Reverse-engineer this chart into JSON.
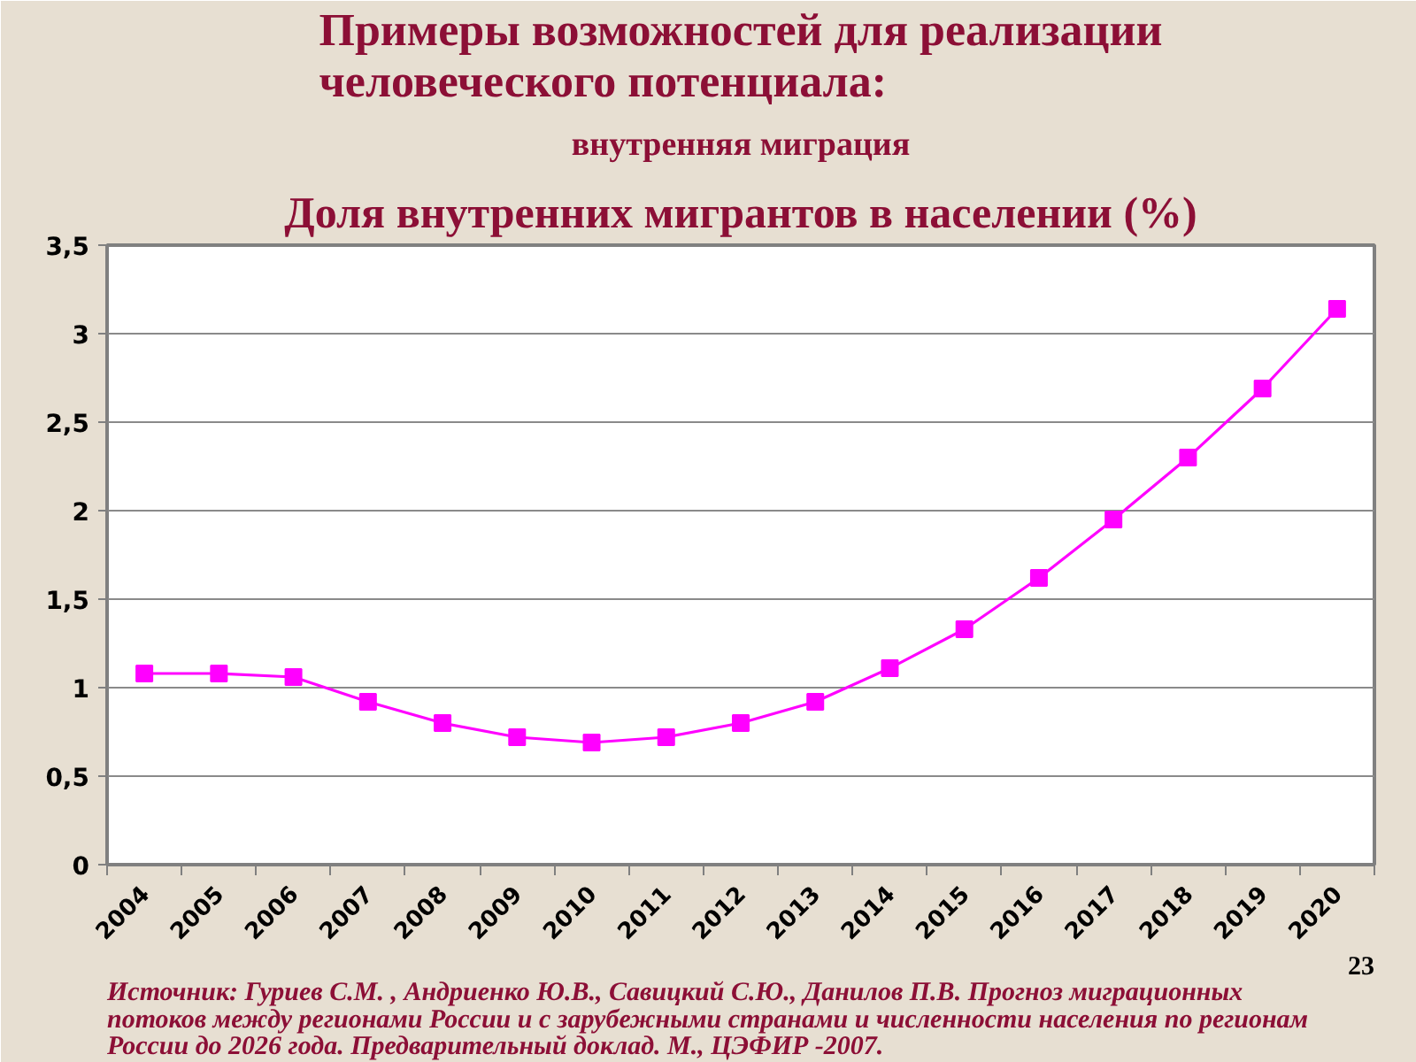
{
  "chart_data": {
    "type": "line",
    "title": "Примеры возможностей для реализации человеческого потенциала:",
    "subtitle": "внутренняя миграция",
    "annotations": [
      "Доля внутренних мигрантов в населении (%)",
      "Источник: Гуриев С.М. , Андриенко Ю.В., Савицкий С.Ю., Данилов П.В. Прогноз миграционных потоков между регионами России и с зарубежными странами и численности населения по регионам России до 2026 года. Предварительный доклад. М., ЦЭФИР -2007.",
      "23"
    ],
    "categories": [
      "2004",
      "2005",
      "2006",
      "2007",
      "2008",
      "2009",
      "2010",
      "2011",
      "2012",
      "2013",
      "2014",
      "2015",
      "2016",
      "2017",
      "2018",
      "2019",
      "2020"
    ],
    "series": [
      {
        "color": "#ff00ff",
        "values": [
          1.08,
          1.08,
          1.06,
          0.92,
          0.8,
          0.72,
          0.69,
          0.72,
          0.8,
          0.92,
          1.11,
          1.33,
          1.62,
          1.95,
          2.3,
          2.69,
          3.14
        ]
      }
    ],
    "ylim": [
      0,
      3.5
    ],
    "yticks": [
      0,
      {
        "value": 0.5,
        "label": "0,5"
      },
      1,
      {
        "value": 1.5,
        "label": "1,5"
      },
      2,
      {
        "value": 2.5,
        "label": "2,5"
      },
      3,
      {
        "value": 3.5,
        "label": "3,5"
      }
    ],
    "grid": "y",
    "marker": "square",
    "line_style": "solid"
  }
}
